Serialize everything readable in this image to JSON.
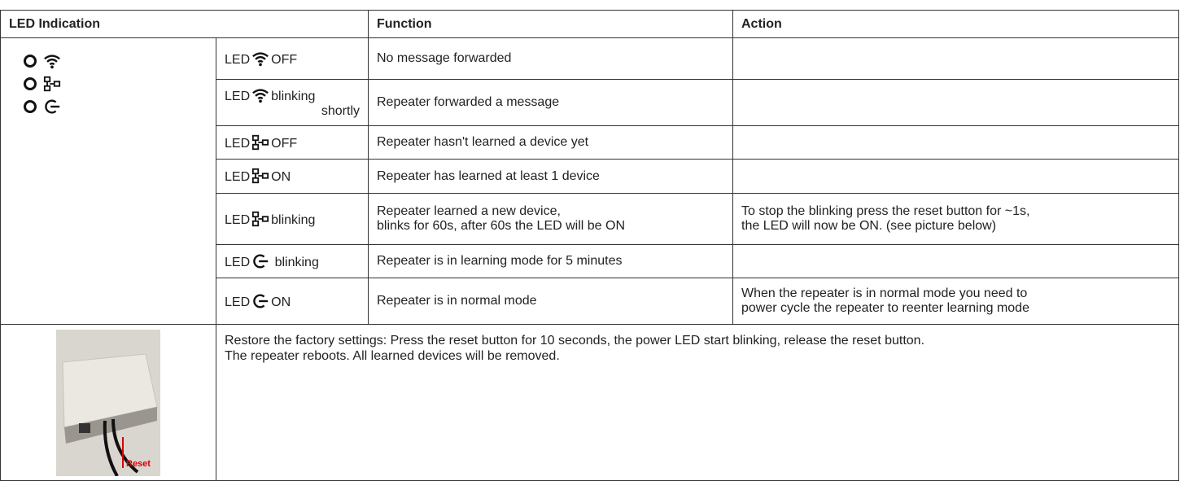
{
  "table": {
    "header": [
      "LED Indication",
      "Function",
      "Action"
    ],
    "rows": [
      {
        "led": "LED",
        "state": [
          "OFF"
        ],
        "function": [
          "No message forwarded"
        ]
      },
      {
        "led": "LED",
        "state": [
          "blinking",
          "shortly"
        ],
        "function": [
          "Repeater forwarded a message"
        ]
      },
      {
        "led": "LED",
        "state": [
          "OFF"
        ],
        "function": [
          "Repeater hasn't learned a device yet"
        ]
      },
      {
        "led": "LED",
        "state": [
          "ON"
        ],
        "function": [
          "Repeater has learned at least 1 device"
        ]
      },
      {
        "led": "LED",
        "state": [
          "blinking"
        ],
        "function": [
          "Repeater learned a new device,",
          "blinks for 60s, after 60s the LED will be ON"
        ],
        "action": [
          "To stop the blinking press the reset button for ~1s,",
          "the LED will now be ON. (see picture below)"
        ]
      },
      {
        "led": "LED",
        "state": [
          "blinking"
        ],
        "function": [
          "Repeater is in learning mode for 5 minutes"
        ]
      },
      {
        "led": "LED",
        "state": [
          "ON"
        ],
        "function": [
          "Repeater is in normal mode"
        ],
        "action": [
          "When the repeater is in normal mode you need to",
          "power cycle the repeater to reenter learning mode"
        ]
      }
    ],
    "footer": {
      "photo_label": "Reset",
      "text": [
        "Restore the factory settings: Press the reset button for 10 seconds, the power LED start blinking, release the reset button.",
        "The repeater reboots. All learned devices will be removed."
      ]
    }
  }
}
